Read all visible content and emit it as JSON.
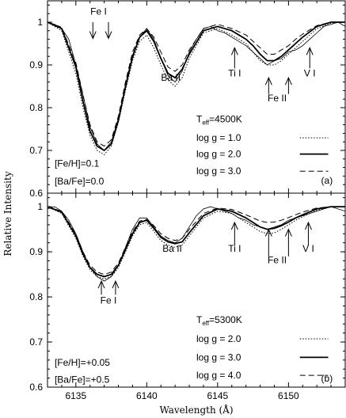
{
  "chart_data": {
    "type": "line",
    "xlabel": "Wavelength (Å)",
    "ylabel": "Relative Intensity",
    "xlim": [
      6133,
      6154
    ],
    "x_ticks": [
      6135,
      6140,
      6145,
      6150
    ],
    "panels": [
      {
        "id": "a",
        "panel_label": "(a)",
        "ylim": [
          0.6,
          1.05
        ],
        "y_ticks": [
          "0.6",
          "0.7",
          "0.8",
          "0.9",
          "1"
        ],
        "teff_label": "T",
        "teff_sub": "eff",
        "teff_value": "=4500K",
        "params": [
          "[Fe/H]=0.1",
          "[Ba/Fe]=0.0"
        ],
        "lines": [
          {
            "label": "Fe I",
            "x": 6136.6,
            "label_y": 1.018,
            "arrow_from": 1.0,
            "arrow_to": 0.962,
            "dir": "down"
          },
          {
            "label": "Ba II",
            "x": 6141.7,
            "label_y": 0.863,
            "arrow_from": null,
            "arrow_to": null,
            "dir": "none"
          },
          {
            "label": "Ti I",
            "x": 6146.2,
            "label_y": 0.873,
            "arrow_from": 0.892,
            "arrow_to": 0.94,
            "dir": "up"
          },
          {
            "label": "Fe II",
            "x": 6149.2,
            "label_y": 0.815,
            "arrow_from": 0.832,
            "arrow_to": 0.87,
            "dir": "up"
          },
          {
            "label": "V I",
            "x": 6151.5,
            "label_y": 0.873,
            "arrow_from": 0.892,
            "arrow_to": 0.94,
            "dir": "up"
          }
        ],
        "arrow_xs": [
          6136.2,
          6137.3,
          6146.2,
          6148.6,
          6150.0,
          6151.5
        ],
        "legend": [
          {
            "name": "log g = 1.0",
            "style": "dotted"
          },
          {
            "name": "log g = 2.0",
            "style": "solid"
          },
          {
            "name": "log g = 3.0",
            "style": "dashed"
          }
        ],
        "series": [
          {
            "name": "observed",
            "style": "thin",
            "x": [
              6133.0,
              6133.5,
              6134.0,
              6134.5,
              6135.0,
              6135.5,
              6136.0,
              6136.5,
              6137.0,
              6137.5,
              6138.0,
              6138.5,
              6139.0,
              6139.5,
              6140.0,
              6140.5,
              6141.0,
              6141.5,
              6142.0,
              6142.5,
              6143.0,
              6143.5,
              6144.0,
              6144.5,
              6145.0,
              6145.5,
              6146.0,
              6146.5,
              6147.0,
              6147.5,
              6148.0,
              6148.5,
              6149.0,
              6149.5,
              6150.0,
              6150.5,
              6151.0,
              6151.5,
              6152.0,
              6152.5,
              6153.0,
              6153.5,
              6154.0
            ],
            "y": [
              1.0,
              0.995,
              0.985,
              0.96,
              0.9,
              0.83,
              0.755,
              0.715,
              0.7,
              0.72,
              0.775,
              0.845,
              0.915,
              0.965,
              0.985,
              0.96,
              0.915,
              0.875,
              0.86,
              0.885,
              0.93,
              0.96,
              0.985,
              0.99,
              0.98,
              0.975,
              0.965,
              0.955,
              0.945,
              0.93,
              0.915,
              0.9,
              0.91,
              0.915,
              0.93,
              0.935,
              0.945,
              0.96,
              0.975,
              0.99,
              0.995,
              1.0,
              0.99
            ]
          },
          {
            "name": "log g = 1.0",
            "style": "dotted",
            "x": [
              6133.0,
              6134.0,
              6135.0,
              6135.5,
              6136.0,
              6136.5,
              6137.0,
              6137.5,
              6138.0,
              6138.5,
              6139.0,
              6139.5,
              6140.0,
              6140.5,
              6141.0,
              6141.5,
              6142.0,
              6142.5,
              6143.0,
              6144.0,
              6145.0,
              6146.0,
              6147.0,
              6147.5,
              6148.0,
              6148.5,
              6149.0,
              6149.5,
              6150.0,
              6150.5,
              6151.0,
              6152.0,
              6153.0,
              6154.0
            ],
            "y": [
              1.0,
              0.98,
              0.88,
              0.8,
              0.735,
              0.7,
              0.69,
              0.71,
              0.765,
              0.84,
              0.91,
              0.955,
              0.97,
              0.94,
              0.9,
              0.865,
              0.85,
              0.87,
              0.915,
              0.975,
              0.985,
              0.97,
              0.95,
              0.93,
              0.91,
              0.9,
              0.9,
              0.91,
              0.925,
              0.94,
              0.955,
              0.985,
              0.998,
              1.0
            ]
          },
          {
            "name": "log g = 2.0",
            "style": "solid",
            "x": [
              6133.0,
              6134.0,
              6135.0,
              6135.5,
              6136.0,
              6136.5,
              6137.0,
              6137.5,
              6138.0,
              6138.5,
              6139.0,
              6139.5,
              6140.0,
              6140.5,
              6141.0,
              6141.5,
              6142.0,
              6142.5,
              6143.0,
              6144.0,
              6145.0,
              6146.0,
              6147.0,
              6147.5,
              6148.0,
              6148.5,
              6149.0,
              6149.5,
              6150.0,
              6150.5,
              6151.0,
              6152.0,
              6153.0,
              6154.0
            ],
            "y": [
              1.0,
              0.985,
              0.895,
              0.815,
              0.745,
              0.71,
              0.7,
              0.715,
              0.77,
              0.85,
              0.92,
              0.965,
              0.98,
              0.955,
              0.915,
              0.88,
              0.87,
              0.89,
              0.925,
              0.98,
              0.99,
              0.98,
              0.96,
              0.945,
              0.925,
              0.91,
              0.91,
              0.92,
              0.935,
              0.95,
              0.965,
              0.99,
              1.0,
              1.0
            ]
          },
          {
            "name": "log g = 3.0",
            "style": "dashed",
            "x": [
              6133.0,
              6134.0,
              6135.0,
              6135.5,
              6136.0,
              6136.5,
              6137.0,
              6137.5,
              6138.0,
              6138.5,
              6139.0,
              6139.5,
              6140.0,
              6140.5,
              6141.0,
              6141.5,
              6142.0,
              6142.5,
              6143.0,
              6144.0,
              6145.0,
              6146.0,
              6147.0,
              6147.5,
              6148.0,
              6148.5,
              6149.0,
              6149.5,
              6150.0,
              6150.5,
              6151.0,
              6152.0,
              6153.0,
              6154.0
            ],
            "y": [
              1.0,
              0.988,
              0.905,
              0.83,
              0.76,
              0.72,
              0.71,
              0.725,
              0.78,
              0.86,
              0.93,
              0.97,
              0.985,
              0.965,
              0.93,
              0.895,
              0.885,
              0.9,
              0.935,
              0.985,
              0.995,
              0.985,
              0.97,
              0.955,
              0.94,
              0.925,
              0.925,
              0.935,
              0.945,
              0.96,
              0.972,
              0.992,
              1.0,
              1.0
            ]
          }
        ]
      },
      {
        "id": "b",
        "panel_label": "(b)",
        "ylim": [
          0.6,
          1.03
        ],
        "y_ticks": [
          "0.6",
          "0.7",
          "0.8",
          "0.9",
          "1"
        ],
        "teff_label": "T",
        "teff_sub": "eff",
        "teff_value": "=5300K",
        "params": [
          "[Fe/H]=+0.05",
          "[Ba/Fe]=+0.5"
        ],
        "lines": [
          {
            "label": "Fe I",
            "x": 6137.3,
            "label_y": 0.785,
            "arrow_from": 0.805,
            "arrow_to": 0.835,
            "dir": "up"
          },
          {
            "label": "Ba II",
            "x": 6141.8,
            "label_y": 0.9,
            "arrow_from": null,
            "arrow_to": null,
            "dir": "none"
          },
          {
            "label": "Ti I",
            "x": 6146.2,
            "label_y": 0.9,
            "arrow_from": 0.915,
            "arrow_to": 0.965,
            "dir": "up"
          },
          {
            "label": "Fe II",
            "x": 6149.2,
            "label_y": 0.875,
            "arrow_from": 0.89,
            "arrow_to": 0.95,
            "dir": "up"
          },
          {
            "label": "V I",
            "x": 6151.4,
            "label_y": 0.9,
            "arrow_from": 0.915,
            "arrow_to": 0.965,
            "dir": "up"
          }
        ],
        "arrow_xs": [
          6136.8,
          6137.8,
          6146.2,
          6148.6,
          6150.0,
          6151.4
        ],
        "legend": [
          {
            "name": "log g = 2.0",
            "style": "dotted"
          },
          {
            "name": "log g = 3.0",
            "style": "solid"
          },
          {
            "name": "log g = 4.0",
            "style": "dashed"
          }
        ],
        "series": [
          {
            "name": "observed",
            "style": "thin",
            "x": [
              6133.0,
              6133.5,
              6134.0,
              6134.5,
              6135.0,
              6135.5,
              6136.0,
              6136.5,
              6137.0,
              6137.5,
              6138.0,
              6138.5,
              6139.0,
              6139.5,
              6140.0,
              6140.5,
              6141.0,
              6141.5,
              6142.0,
              6142.5,
              6143.0,
              6143.5,
              6144.0,
              6144.5,
              6145.0,
              6145.5,
              6146.0,
              6146.5,
              6147.0,
              6147.5,
              6148.0,
              6148.5,
              6149.0,
              6149.5,
              6150.0,
              6150.5,
              6151.0,
              6151.5,
              6152.0,
              6152.5,
              6153.0,
              6153.5,
              6154.0
            ],
            "y": [
              0.995,
              1.0,
              0.99,
              0.97,
              0.94,
              0.9,
              0.865,
              0.845,
              0.835,
              0.845,
              0.87,
              0.91,
              0.95,
              0.975,
              0.975,
              0.955,
              0.935,
              0.925,
              0.92,
              0.93,
              0.955,
              0.98,
              0.995,
              1.0,
              0.995,
              0.99,
              0.985,
              0.975,
              0.97,
              0.96,
              0.955,
              0.95,
              0.955,
              0.96,
              0.97,
              0.975,
              0.98,
              0.985,
              0.99,
              0.995,
              1.0,
              0.995,
              0.99
            ]
          },
          {
            "name": "log g = 2.0",
            "style": "dotted",
            "x": [
              6133.0,
              6134.0,
              6135.0,
              6135.5,
              6136.0,
              6136.5,
              6137.0,
              6137.5,
              6138.0,
              6138.5,
              6139.0,
              6139.5,
              6140.0,
              6140.5,
              6141.0,
              6141.5,
              6142.0,
              6142.5,
              6143.0,
              6144.0,
              6145.0,
              6146.0,
              6147.0,
              6147.5,
              6148.0,
              6148.5,
              6149.0,
              6149.5,
              6150.0,
              6150.5,
              6151.0,
              6152.0,
              6153.0,
              6154.0
            ],
            "y": [
              1.0,
              0.985,
              0.93,
              0.89,
              0.86,
              0.845,
              0.84,
              0.845,
              0.865,
              0.9,
              0.935,
              0.96,
              0.965,
              0.945,
              0.925,
              0.915,
              0.91,
              0.915,
              0.935,
              0.975,
              0.99,
              0.985,
              0.965,
              0.955,
              0.945,
              0.94,
              0.942,
              0.95,
              0.96,
              0.97,
              0.978,
              0.992,
              1.0,
              1.0
            ]
          },
          {
            "name": "log g = 3.0",
            "style": "solid",
            "x": [
              6133.0,
              6134.0,
              6135.0,
              6135.5,
              6136.0,
              6136.5,
              6137.0,
              6137.5,
              6138.0,
              6138.5,
              6139.0,
              6139.5,
              6140.0,
              6140.5,
              6141.0,
              6141.5,
              6142.0,
              6142.5,
              6143.0,
              6144.0,
              6145.0,
              6146.0,
              6147.0,
              6147.5,
              6148.0,
              6148.5,
              6149.0,
              6149.5,
              6150.0,
              6150.5,
              6151.0,
              6152.0,
              6153.0,
              6154.0
            ],
            "y": [
              1.0,
              0.988,
              0.935,
              0.895,
              0.865,
              0.85,
              0.845,
              0.85,
              0.87,
              0.905,
              0.94,
              0.965,
              0.97,
              0.952,
              0.932,
              0.922,
              0.918,
              0.922,
              0.942,
              0.98,
              0.995,
              0.99,
              0.975,
              0.965,
              0.955,
              0.95,
              0.952,
              0.958,
              0.966,
              0.975,
              0.982,
              0.995,
              1.0,
              1.0
            ]
          },
          {
            "name": "log g = 4.0",
            "style": "dashed",
            "x": [
              6133.0,
              6134.0,
              6135.0,
              6135.5,
              6136.0,
              6136.5,
              6137.0,
              6137.5,
              6138.0,
              6138.5,
              6139.0,
              6139.5,
              6140.0,
              6140.5,
              6141.0,
              6141.5,
              6142.0,
              6142.5,
              6143.0,
              6144.0,
              6145.0,
              6146.0,
              6147.0,
              6147.5,
              6148.0,
              6148.5,
              6149.0,
              6149.5,
              6150.0,
              6150.5,
              6151.0,
              6152.0,
              6153.0,
              6154.0
            ],
            "y": [
              1.0,
              0.99,
              0.94,
              0.9,
              0.87,
              0.855,
              0.85,
              0.855,
              0.875,
              0.91,
              0.945,
              0.968,
              0.972,
              0.958,
              0.94,
              0.93,
              0.925,
              0.93,
              0.95,
              0.985,
              0.997,
              0.994,
              0.982,
              0.975,
              0.968,
              0.965,
              0.966,
              0.97,
              0.976,
              0.982,
              0.988,
              0.997,
              1.0,
              1.0
            ]
          }
        ]
      }
    ]
  }
}
